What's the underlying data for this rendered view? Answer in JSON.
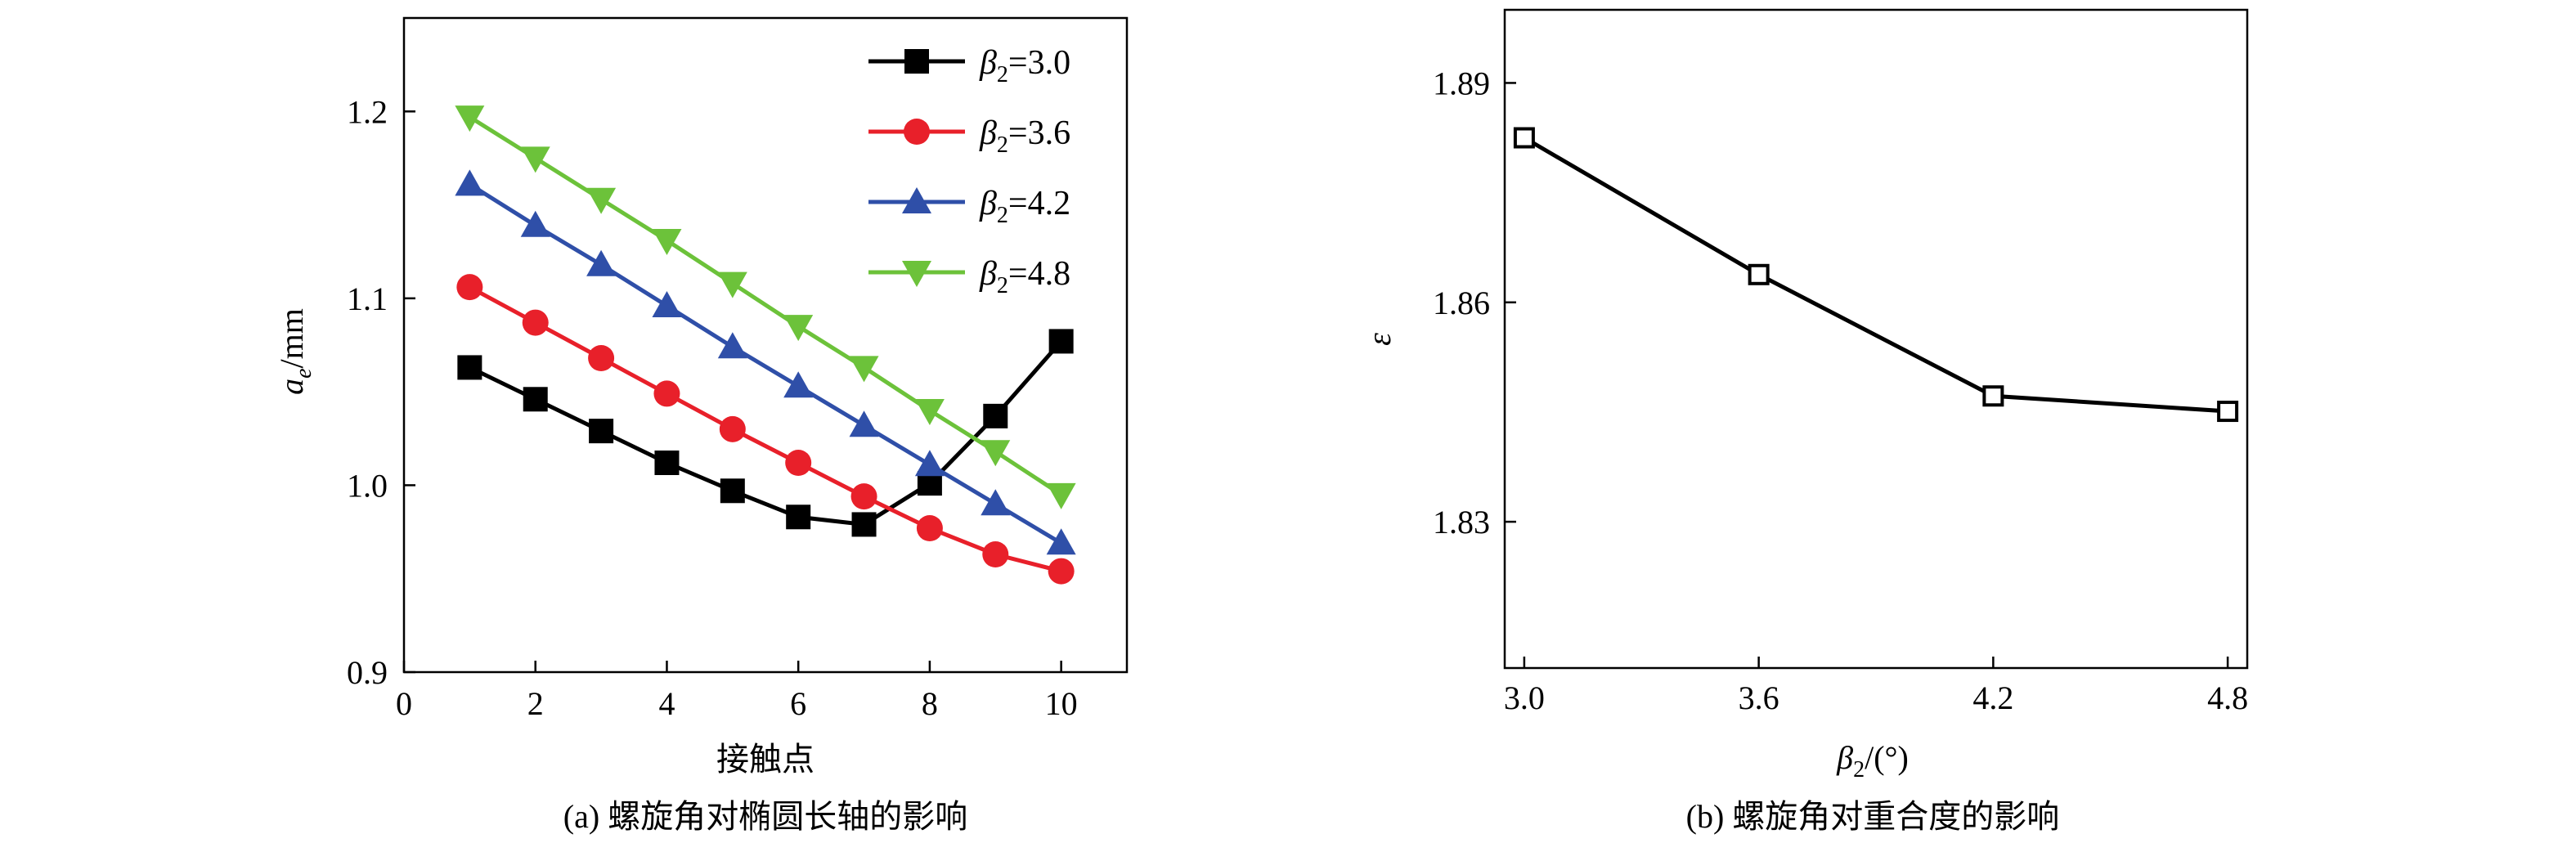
{
  "chart_data": [
    {
      "type": "line",
      "panel_caption": "(a) 螺旋角对椭圆长轴的影响",
      "xlabel": "接触点",
      "ylabel": {
        "base": "a",
        "subscript": "e",
        "unit": "/mm"
      },
      "xlim": [
        0,
        11
      ],
      "ylim": [
        0.9,
        1.25
      ],
      "xticks": [
        0,
        2,
        4,
        6,
        8,
        10
      ],
      "yticks": [
        0.9,
        1.0,
        1.1,
        1.2
      ],
      "xtick_labels": [
        "0",
        "2",
        "4",
        "6",
        "8",
        "10"
      ],
      "ytick_labels": [
        "0.9",
        "1.0",
        "1.1",
        "1.2"
      ],
      "x": [
        1,
        2,
        3,
        4,
        5,
        6,
        7,
        8,
        9,
        10
      ],
      "series": [
        {
          "name": "β2=3.0",
          "legend_sub": "2",
          "legend_value": "=3.0",
          "color": "#000000",
          "marker": "square",
          "values": [
            1.063,
            1.046,
            1.029,
            1.012,
            0.997,
            0.983,
            0.979,
            1.001,
            1.037,
            1.077
          ]
        },
        {
          "name": "β2=3.6",
          "legend_sub": "2",
          "legend_value": "=3.6",
          "color": "#e8202a",
          "marker": "circle",
          "values": [
            1.106,
            1.087,
            1.068,
            1.049,
            1.03,
            1.012,
            0.994,
            0.977,
            0.963,
            0.954
          ]
        },
        {
          "name": "β2=4.2",
          "legend_sub": "2",
          "legend_value": "=4.2",
          "color": "#2f4fa8",
          "marker": "triangle-up",
          "values": [
            1.161,
            1.139,
            1.118,
            1.096,
            1.074,
            1.053,
            1.032,
            1.011,
            0.99,
            0.969
          ]
        },
        {
          "name": "β2=4.8",
          "legend_sub": "2",
          "legend_value": "=4.8",
          "color": "#6cc23a",
          "marker": "triangle-down",
          "values": [
            1.197,
            1.175,
            1.153,
            1.131,
            1.108,
            1.085,
            1.063,
            1.04,
            1.018,
            0.995
          ]
        }
      ],
      "legend_position": "top-right"
    },
    {
      "type": "line",
      "panel_caption": "(b) 螺旋角对重合度的影响",
      "xlabel": {
        "base": "β",
        "subscript": "2",
        "unit": "/(°)"
      },
      "ylabel": "ε",
      "xlim": [
        2.95,
        4.85
      ],
      "ylim": [
        1.81,
        1.9
      ],
      "xticks": [
        3.0,
        3.6,
        4.2,
        4.8
      ],
      "yticks": [
        1.83,
        1.86,
        1.89
      ],
      "xtick_labels": [
        "3.0",
        "3.6",
        "4.2",
        "4.8"
      ],
      "ytick_labels": [
        "1.83",
        "1.86",
        "1.89"
      ],
      "x": [
        3.0,
        3.6,
        4.2,
        4.8
      ],
      "series": [
        {
          "name": "ε",
          "color": "#000000",
          "marker": "open-square",
          "values": [
            1.8825,
            1.8638,
            1.8472,
            1.8451
          ]
        }
      ]
    }
  ]
}
